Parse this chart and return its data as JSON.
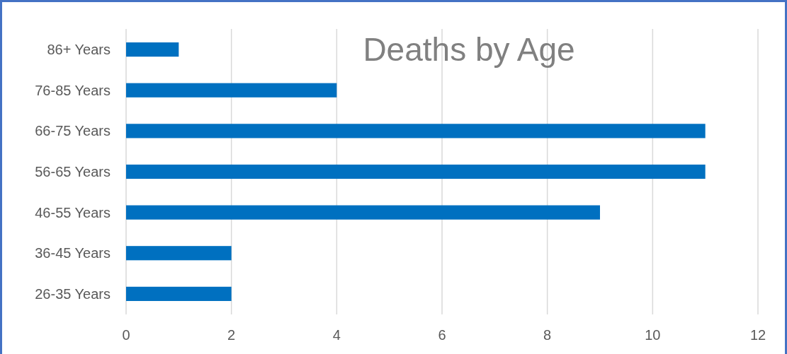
{
  "chart_data": {
    "type": "bar",
    "title": "Deaths by Age",
    "orientation": "horizontal",
    "categories": [
      "86+ Years",
      "76-85 Years",
      "66-75 Years",
      "56-65 Years",
      "46-55 Years",
      "36-45 Years",
      "26-35 Years"
    ],
    "values": [
      1,
      4,
      11,
      11,
      9,
      2,
      2
    ],
    "color": "#0070c0",
    "xlim": [
      0,
      12
    ],
    "xticks": [
      0,
      2,
      4,
      6,
      8,
      10,
      12
    ],
    "grid": "x"
  }
}
